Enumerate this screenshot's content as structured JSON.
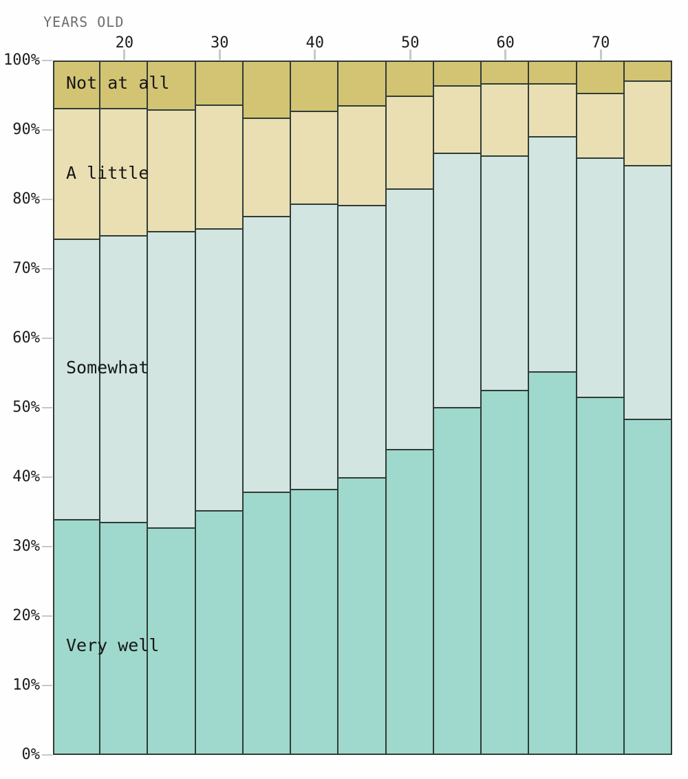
{
  "x_axis": {
    "title": "YEARS OLD",
    "tick_labels": [
      "20",
      "30",
      "40",
      "50",
      "60",
      "70"
    ]
  },
  "y_axis": {
    "tick_labels": [
      "100%",
      "90%",
      "80%",
      "70%",
      "60%",
      "50%",
      "40%",
      "30%",
      "20%",
      "10%",
      "0%"
    ]
  },
  "segment_labels": {
    "not_at_all": "Not at all",
    "a_little": "A little",
    "somewhat": "Somewhat",
    "very_well": "Very well"
  },
  "colors": {
    "not_at_all": "#d3c474",
    "a_little": "#e9dfb3",
    "somewhat": "#d2e5e0",
    "very_well": "#9fd8cc",
    "segment_border": "#2f3b36",
    "tick": "#c7c7c4",
    "axis_title_text": "#6e6e6e",
    "axis_tick_text": "#1c1c1c"
  },
  "chart_data": {
    "type": "bar",
    "subtype": "stacked-100-percent",
    "xlabel": "YEARS OLD",
    "ylabel": "",
    "ylim": [
      0,
      100
    ],
    "x": [
      15,
      20,
      25,
      30,
      35,
      40,
      45,
      50,
      55,
      60,
      65,
      70,
      75
    ],
    "x_ticks_shown": [
      20,
      30,
      40,
      50,
      60,
      70
    ],
    "y_ticks_shown": [
      0,
      10,
      20,
      30,
      40,
      50,
      60,
      70,
      80,
      90,
      100
    ],
    "grid": false,
    "legend_position": "labels-inside-first-bar",
    "series": [
      {
        "name": "Very well",
        "color": "#9fd8cc",
        "values": [
          34.0,
          33.6,
          32.8,
          35.2,
          37.9,
          38.3,
          40.0,
          44.1,
          50.1,
          52.6,
          55.2,
          51.6,
          48.4
        ]
      },
      {
        "name": "Somewhat",
        "color": "#d2e5e0",
        "values": [
          40.4,
          41.3,
          42.6,
          40.6,
          39.7,
          41.1,
          39.2,
          37.5,
          36.6,
          33.7,
          33.9,
          34.4,
          36.6
        ]
      },
      {
        "name": "A little",
        "color": "#e9dfb3",
        "values": [
          18.8,
          18.3,
          17.6,
          17.9,
          14.2,
          13.4,
          14.4,
          13.4,
          9.7,
          10.4,
          7.6,
          9.3,
          12.1
        ]
      },
      {
        "name": "Not at all",
        "color": "#d3c474",
        "values": [
          6.8,
          6.8,
          7.0,
          6.3,
          8.2,
          7.2,
          6.4,
          5.0,
          3.6,
          3.3,
          3.3,
          4.7,
          2.9
        ]
      }
    ]
  },
  "layout_hints": {
    "series_label_centers_y": {
      "not_at_all": 121,
      "a_little": 252,
      "somewhat": 535,
      "very_well": 939
    }
  }
}
